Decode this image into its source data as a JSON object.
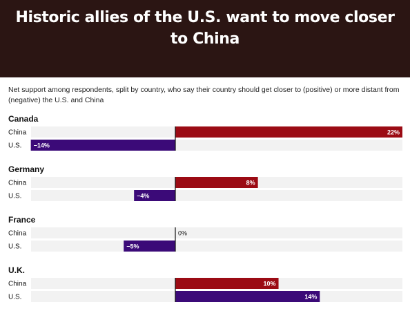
{
  "header": {
    "title": "Historic allies of the U.S. want to move closer to China",
    "subtitle": "Net support among respondents, split by country, who say their country should get closer to (positive) or more distant from (negative) the U.S. and China"
  },
  "colors": {
    "header_bg": "#2b1513",
    "china": "#9b0b14",
    "us": "#3b0a78",
    "track": "#f2f2f2",
    "axis": "#111111"
  },
  "chart_data": {
    "type": "bar",
    "orientation": "horizontal",
    "title": "Historic allies of the U.S. want to move closer to China",
    "subtitle": "Net support among respondents, split by country, who say their country should get closer to (positive) or more distant from (negative) the U.S. and China",
    "unit": "%",
    "xlim": [
      -24,
      24
    ],
    "groups": [
      {
        "name": "Canada",
        "bars": [
          {
            "label": "China",
            "value": 22,
            "text": "22%"
          },
          {
            "label": "U.S.",
            "value": -14,
            "text": "−14%"
          }
        ]
      },
      {
        "name": "Germany",
        "bars": [
          {
            "label": "China",
            "value": 8,
            "text": "8%"
          },
          {
            "label": "U.S.",
            "value": -4,
            "text": "−4%"
          }
        ]
      },
      {
        "name": "France",
        "bars": [
          {
            "label": "China",
            "value": 0,
            "text": "0%"
          },
          {
            "label": "U.S.",
            "value": -5,
            "text": "−5%"
          }
        ]
      },
      {
        "name": "U.K.",
        "bars": [
          {
            "label": "China",
            "value": 10,
            "text": "10%"
          },
          {
            "label": "U.S.",
            "value": 14,
            "text": "14%"
          }
        ]
      }
    ]
  }
}
